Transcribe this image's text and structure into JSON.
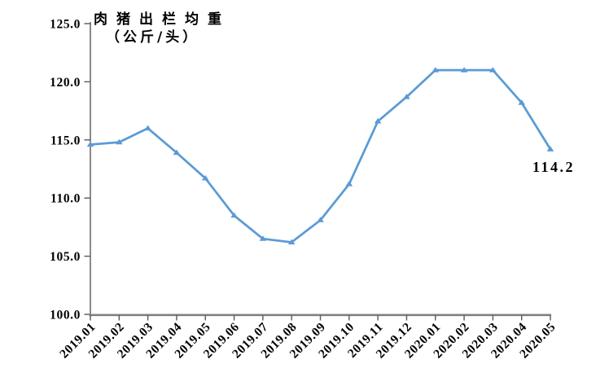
{
  "chart": {
    "title_line1": "肉猪出栏均重",
    "title_line2": "（公斤/头）",
    "annotation": "114.2"
  },
  "chart_data": {
    "type": "line",
    "title": "肉猪出栏均重（公斤/头）",
    "xlabel": "",
    "ylabel": "",
    "categories": [
      "2019.01",
      "2019.02",
      "2019.03",
      "2019.04",
      "2019.05",
      "2019.06",
      "2019.07",
      "2019.08",
      "2019.09",
      "2019.10",
      "2019.11",
      "2019.12",
      "2020.01",
      "2020.02",
      "2020.03",
      "2020.04",
      "2020.05"
    ],
    "series": [
      {
        "name": "肉猪出栏均重（公斤/头）",
        "values": [
          114.6,
          114.8,
          116.0,
          113.9,
          111.7,
          108.5,
          106.5,
          106.2,
          108.1,
          111.2,
          116.6,
          118.7,
          121.0,
          121.0,
          121.0,
          118.2,
          114.2
        ]
      }
    ],
    "ylim": [
      100.0,
      125.0
    ],
    "y_ticks": [
      100,
      105,
      110,
      115,
      120,
      125
    ],
    "y_tick_labels": [
      "100.0",
      "105.0",
      "110.0",
      "115.0",
      "120.0",
      "125.0"
    ],
    "grid": false,
    "legend": "none",
    "x_label_rotation": -45,
    "marker": "triangle-up",
    "annotations": [
      {
        "category": "2020.05",
        "text": "114.2",
        "position": "below-left-of-point"
      }
    ],
    "colors": {
      "line": "#5B9BD5",
      "axis": "#595959",
      "x_axis_line": "#808080",
      "text": "#000000",
      "background": "#FFFFFF"
    }
  }
}
